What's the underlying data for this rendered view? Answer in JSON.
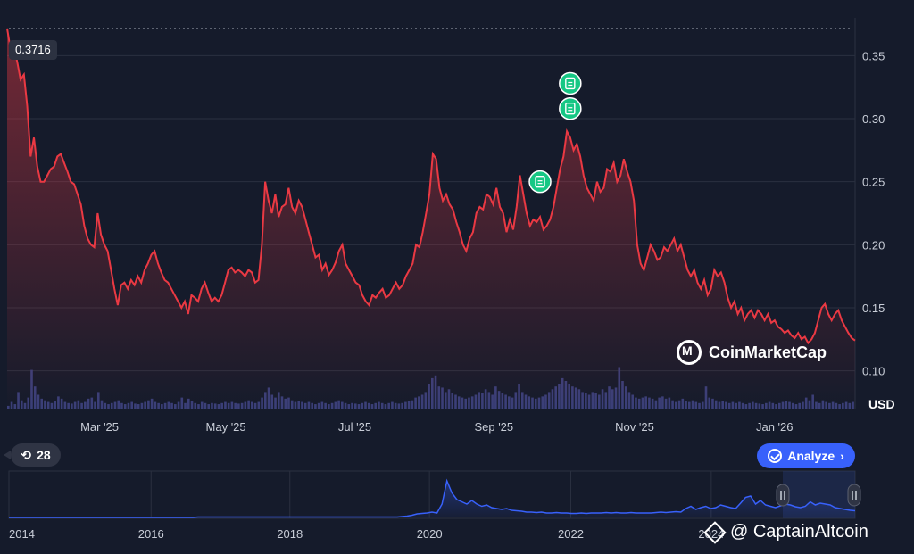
{
  "current_price_label": "0.3716",
  "history_label": "28",
  "analyze_label": "Analyze",
  "logo_text": "CoinMarketCap",
  "watermark": "@ CaptainAltcoin",
  "currency_label": "USD",
  "colors": {
    "background": "#151b2b",
    "line": "#ea3943",
    "volume": "#3a3f78",
    "nav_line": "#3861fb",
    "grid": "#2a3040",
    "marker": "#16c784"
  },
  "chart_data": {
    "type": "line",
    "ylim": [
      0.07,
      0.38
    ],
    "yticks": [
      "0.35",
      "0.30",
      "0.25",
      "0.20",
      "0.15",
      "0.10"
    ],
    "ytick_values": [
      0.35,
      0.3,
      0.25,
      0.2,
      0.15,
      0.1
    ],
    "xticks": [
      "Mar '25",
      "May '25",
      "Jul '25",
      "Sep '25",
      "Nov '25",
      "Jan '26"
    ],
    "xtick_values": [
      0.109,
      0.258,
      0.41,
      0.574,
      0.74,
      0.905
    ],
    "reference_line": 0.3716,
    "series": [
      {
        "values": [
          0.3716,
          0.355,
          0.357,
          0.345,
          0.331,
          0.335,
          0.31,
          0.27,
          0.285,
          0.262,
          0.25,
          0.25,
          0.255,
          0.26,
          0.262,
          0.27,
          0.272,
          0.265,
          0.258,
          0.25,
          0.248,
          0.24,
          0.232,
          0.215,
          0.205,
          0.2,
          0.198,
          0.225,
          0.208,
          0.2,
          0.195,
          0.18,
          0.165,
          0.152,
          0.168,
          0.17,
          0.165,
          0.172,
          0.168,
          0.175,
          0.17,
          0.18,
          0.185,
          0.192,
          0.195,
          0.185,
          0.178,
          0.172,
          0.17,
          0.165,
          0.16,
          0.155,
          0.15,
          0.155,
          0.145,
          0.16,
          0.158,
          0.155,
          0.165,
          0.17,
          0.162,
          0.155,
          0.158,
          0.155,
          0.16,
          0.17,
          0.18,
          0.182,
          0.178,
          0.18,
          0.178,
          0.175,
          0.18,
          0.178,
          0.17,
          0.172,
          0.2,
          0.25,
          0.235,
          0.225,
          0.24,
          0.222,
          0.23,
          0.232,
          0.245,
          0.23,
          0.225,
          0.235,
          0.23,
          0.22,
          0.21,
          0.2,
          0.19,
          0.192,
          0.18,
          0.185,
          0.176,
          0.18,
          0.186,
          0.195,
          0.2,
          0.185,
          0.18,
          0.175,
          0.17,
          0.168,
          0.16,
          0.155,
          0.152,
          0.16,
          0.158,
          0.162,
          0.165,
          0.158,
          0.16,
          0.165,
          0.17,
          0.165,
          0.168,
          0.175,
          0.18,
          0.185,
          0.2,
          0.198,
          0.21,
          0.225,
          0.24,
          0.272,
          0.268,
          0.245,
          0.235,
          0.24,
          0.232,
          0.228,
          0.218,
          0.21,
          0.2,
          0.195,
          0.205,
          0.21,
          0.225,
          0.23,
          0.228,
          0.24,
          0.238,
          0.232,
          0.245,
          0.23,
          0.225,
          0.21,
          0.22,
          0.212,
          0.23,
          0.255,
          0.24,
          0.225,
          0.215,
          0.22,
          0.218,
          0.222,
          0.212,
          0.215,
          0.22,
          0.23,
          0.245,
          0.26,
          0.27,
          0.29,
          0.285,
          0.275,
          0.28,
          0.27,
          0.255,
          0.245,
          0.24,
          0.235,
          0.25,
          0.242,
          0.245,
          0.26,
          0.258,
          0.265,
          0.25,
          0.255,
          0.268,
          0.258,
          0.25,
          0.235,
          0.2,
          0.185,
          0.18,
          0.19,
          0.2,
          0.195,
          0.188,
          0.19,
          0.198,
          0.195,
          0.2,
          0.205,
          0.195,
          0.2,
          0.19,
          0.18,
          0.175,
          0.18,
          0.17,
          0.165,
          0.172,
          0.16,
          0.165,
          0.18,
          0.175,
          0.178,
          0.17,
          0.158,
          0.15,
          0.155,
          0.145,
          0.15,
          0.14,
          0.145,
          0.148,
          0.142,
          0.148,
          0.145,
          0.14,
          0.145,
          0.138,
          0.14,
          0.135,
          0.133,
          0.13,
          0.132,
          0.128,
          0.126,
          0.13,
          0.125,
          0.127,
          0.122,
          0.125,
          0.13,
          0.14,
          0.15,
          0.153,
          0.145,
          0.14,
          0.145,
          0.148,
          0.14,
          0.135,
          0.13,
          0.126,
          0.124
        ]
      }
    ],
    "volume": [
      0.05,
      0.12,
      0.08,
      0.3,
      0.15,
      0.1,
      0.2,
      0.7,
      0.4,
      0.25,
      0.18,
      0.15,
      0.12,
      0.1,
      0.14,
      0.22,
      0.18,
      0.12,
      0.1,
      0.09,
      0.12,
      0.15,
      0.1,
      0.12,
      0.18,
      0.2,
      0.12,
      0.3,
      0.15,
      0.1,
      0.08,
      0.1,
      0.12,
      0.15,
      0.1,
      0.08,
      0.1,
      0.12,
      0.09,
      0.08,
      0.1,
      0.12,
      0.15,
      0.18,
      0.12,
      0.1,
      0.08,
      0.1,
      0.12,
      0.1,
      0.08,
      0.12,
      0.2,
      0.1,
      0.18,
      0.14,
      0.1,
      0.08,
      0.12,
      0.1,
      0.08,
      0.1,
      0.09,
      0.08,
      0.1,
      0.12,
      0.1,
      0.12,
      0.1,
      0.09,
      0.1,
      0.12,
      0.15,
      0.12,
      0.1,
      0.12,
      0.2,
      0.3,
      0.38,
      0.25,
      0.2,
      0.3,
      0.22,
      0.18,
      0.2,
      0.15,
      0.12,
      0.14,
      0.12,
      0.1,
      0.12,
      0.1,
      0.08,
      0.1,
      0.12,
      0.1,
      0.08,
      0.1,
      0.12,
      0.15,
      0.12,
      0.1,
      0.08,
      0.1,
      0.09,
      0.08,
      0.1,
      0.12,
      0.1,
      0.08,
      0.1,
      0.12,
      0.1,
      0.08,
      0.1,
      0.12,
      0.1,
      0.09,
      0.1,
      0.12,
      0.14,
      0.15,
      0.2,
      0.22,
      0.25,
      0.3,
      0.45,
      0.55,
      0.6,
      0.4,
      0.38,
      0.3,
      0.35,
      0.28,
      0.25,
      0.22,
      0.2,
      0.18,
      0.2,
      0.22,
      0.25,
      0.3,
      0.28,
      0.35,
      0.3,
      0.25,
      0.4,
      0.32,
      0.28,
      0.25,
      0.22,
      0.2,
      0.3,
      0.45,
      0.3,
      0.25,
      0.22,
      0.2,
      0.18,
      0.2,
      0.22,
      0.25,
      0.3,
      0.35,
      0.4,
      0.45,
      0.55,
      0.5,
      0.45,
      0.4,
      0.38,
      0.35,
      0.3,
      0.28,
      0.25,
      0.3,
      0.28,
      0.25,
      0.35,
      0.3,
      0.4,
      0.35,
      0.38,
      0.75,
      0.5,
      0.4,
      0.3,
      0.25,
      0.2,
      0.18,
      0.2,
      0.22,
      0.2,
      0.18,
      0.15,
      0.2,
      0.22,
      0.18,
      0.2,
      0.15,
      0.12,
      0.15,
      0.18,
      0.14,
      0.12,
      0.15,
      0.12,
      0.1,
      0.12,
      0.4,
      0.2,
      0.18,
      0.15,
      0.12,
      0.14,
      0.12,
      0.1,
      0.12,
      0.1,
      0.12,
      0.1,
      0.08,
      0.1,
      0.12,
      0.1,
      0.09,
      0.08,
      0.1,
      0.12,
      0.1,
      0.08,
      0.1,
      0.12,
      0.14,
      0.12,
      0.1,
      0.08,
      0.1,
      0.12,
      0.2,
      0.15,
      0.25,
      0.12,
      0.1,
      0.15,
      0.12,
      0.1,
      0.12,
      0.1,
      0.08,
      0.1,
      0.12,
      0.1,
      0.12
    ],
    "markers": [
      {
        "index": 159,
        "value": 0.25
      },
      {
        "index": 168,
        "value": 0.308
      },
      {
        "index": 168,
        "value": 0.328
      }
    ]
  },
  "navigator": {
    "xticks": [
      "2014",
      "2016",
      "2018",
      "2020",
      "2022",
      "2024"
    ],
    "xtick_values": [
      0.0,
      0.168,
      0.332,
      0.497,
      0.664,
      0.83
    ],
    "values": [
      0.0,
      0.0,
      0.0,
      0.0,
      0.0,
      0.0,
      0.0,
      0.0,
      0.0,
      0.0,
      0.0,
      0.0,
      0.0,
      0.0,
      0.0,
      0.0,
      0.0,
      0.0,
      0.0,
      0.0,
      0.0,
      0.0,
      0.0,
      0.0,
      0.0,
      0.0,
      0.0,
      0.0,
      0.0,
      0.0,
      0.0,
      0.0,
      0.0,
      0.0,
      0.0,
      0.0,
      0.0,
      0.0,
      0.01,
      0.01,
      0.01,
      0.01,
      0.01,
      0.01,
      0.01,
      0.01,
      0.01,
      0.01,
      0.01,
      0.01,
      0.01,
      0.01,
      0.01,
      0.01,
      0.01,
      0.01,
      0.01,
      0.01,
      0.01,
      0.01,
      0.01,
      0.01,
      0.01,
      0.01,
      0.01,
      0.01,
      0.01,
      0.01,
      0.01,
      0.01,
      0.01,
      0.01,
      0.01,
      0.01,
      0.01,
      0.01,
      0.01,
      0.01,
      0.01,
      0.02,
      0.03,
      0.05,
      0.08,
      0.09,
      0.1,
      0.12,
      0.1,
      0.3,
      0.82,
      0.55,
      0.4,
      0.35,
      0.3,
      0.38,
      0.3,
      0.25,
      0.28,
      0.22,
      0.2,
      0.18,
      0.2,
      0.16,
      0.15,
      0.14,
      0.12,
      0.12,
      0.11,
      0.12,
      0.1,
      0.1,
      0.11,
      0.1,
      0.1,
      0.09,
      0.09,
      0.1,
      0.09,
      0.1,
      0.1,
      0.1,
      0.11,
      0.1,
      0.11,
      0.1,
      0.1,
      0.11,
      0.1,
      0.1,
      0.1,
      0.1,
      0.11,
      0.12,
      0.11,
      0.12,
      0.13,
      0.12,
      0.2,
      0.25,
      0.18,
      0.22,
      0.25,
      0.2,
      0.22,
      0.28,
      0.25,
      0.22,
      0.2,
      0.32,
      0.45,
      0.48,
      0.3,
      0.38,
      0.28,
      0.25,
      0.22,
      0.26,
      0.3,
      0.28,
      0.24,
      0.22,
      0.25,
      0.35,
      0.28,
      0.32,
      0.3,
      0.28,
      0.22,
      0.2,
      0.18,
      0.16,
      0.15
    ]
  }
}
